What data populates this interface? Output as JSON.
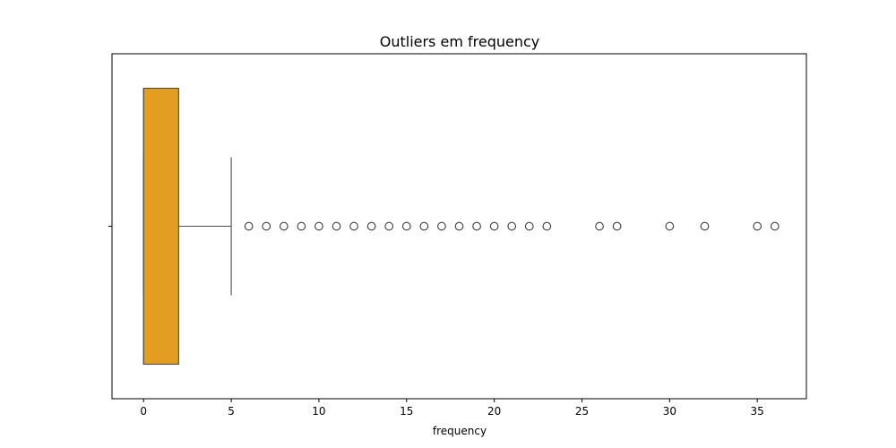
{
  "chart_data": {
    "type": "box",
    "orientation": "horizontal",
    "title": "Outliers em frequency",
    "xlabel": "frequency",
    "ylabel": "",
    "xlim": [
      -1.8,
      37.8
    ],
    "xticks": [
      0,
      5,
      10,
      15,
      20,
      25,
      30,
      35
    ],
    "xtick_labels": [
      "0",
      "5",
      "10",
      "15",
      "20",
      "25",
      "30",
      "35"
    ],
    "grid": false,
    "box": {
      "color": "#e39d20",
      "edge_color": "#4d4d4d",
      "whisker_low": 0,
      "q1": 0,
      "median": 0,
      "q3": 2,
      "whisker_high": 5,
      "outliers": [
        6,
        7,
        8,
        9,
        10,
        11,
        12,
        13,
        14,
        15,
        16,
        17,
        18,
        19,
        20,
        21,
        22,
        23,
        26,
        27,
        30,
        32,
        35,
        36
      ]
    }
  }
}
